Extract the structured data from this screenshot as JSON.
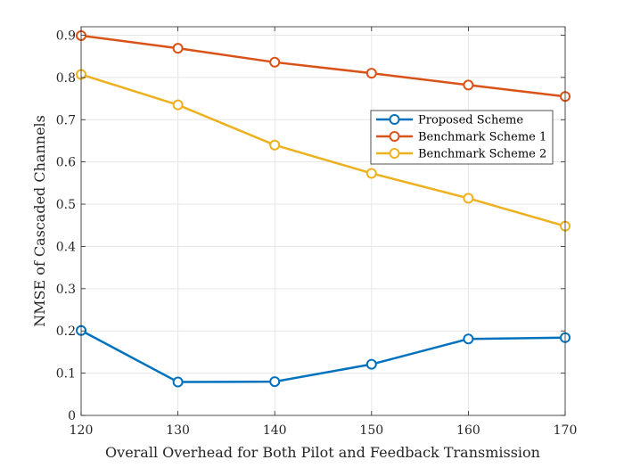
{
  "chart_data": {
    "type": "line",
    "title": "",
    "xlabel": "Overall Overhead for Both Pilot and Feedback Transmission",
    "ylabel": "NMSE of Cascaded Channels",
    "x": [
      120,
      130,
      140,
      150,
      160,
      170
    ],
    "xlim": [
      120,
      170
    ],
    "ylim": [
      0,
      0.92
    ],
    "xticks": [
      "120",
      "130",
      "140",
      "150",
      "160",
      "170"
    ],
    "yticks": [
      "0",
      "0.1",
      "0.2",
      "0.3",
      "0.4",
      "0.5",
      "0.6",
      "0.7",
      "0.8",
      "0.9"
    ],
    "grid": true,
    "legend_position": "upper-right",
    "series": [
      {
        "name": "Proposed Scheme",
        "color": "#0072BD",
        "values": [
          0.201,
          0.079,
          0.08,
          0.121,
          0.181,
          0.184
        ]
      },
      {
        "name": "Benchmark Scheme 1",
        "color": "#D95319",
        "values": [
          0.899,
          0.869,
          0.836,
          0.81,
          0.782,
          0.755
        ]
      },
      {
        "name": "Benchmark Scheme 2",
        "color": "#EDB120",
        "values": [
          0.807,
          0.735,
          0.64,
          0.573,
          0.514,
          0.448
        ]
      }
    ]
  }
}
